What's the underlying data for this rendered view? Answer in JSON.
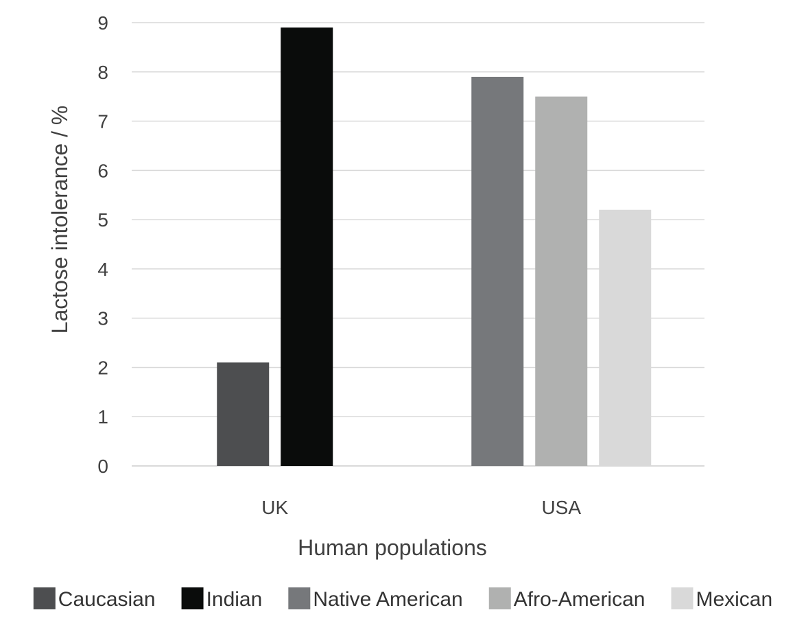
{
  "chart_data": {
    "type": "bar",
    "title": "",
    "xlabel": "Human populations",
    "ylabel": "Lactose intolerance / %",
    "ylim": [
      0,
      9
    ],
    "yticks": [
      0,
      1,
      2,
      3,
      4,
      5,
      6,
      7,
      8,
      9
    ],
    "grid": true,
    "legend_position": "bottom",
    "groups": [
      {
        "category": "UK",
        "bars": [
          {
            "series": "Caucasian",
            "value": 2.1
          },
          {
            "series": "Indian",
            "value": 8.9
          }
        ]
      },
      {
        "category": "USA",
        "bars": [
          {
            "series": "Native American",
            "value": 7.9
          },
          {
            "series": "Afro-American",
            "value": 7.5
          },
          {
            "series": "Mexican",
            "value": 5.2
          }
        ]
      }
    ],
    "series": [
      {
        "name": "Caucasian",
        "color": "#4d4e50"
      },
      {
        "name": "Indian",
        "color": "#0a0c0b"
      },
      {
        "name": "Native American",
        "color": "#76787b"
      },
      {
        "name": "Afro-American",
        "color": "#b0b1b0"
      },
      {
        "name": "Mexican",
        "color": "#d9d9d9"
      }
    ]
  }
}
